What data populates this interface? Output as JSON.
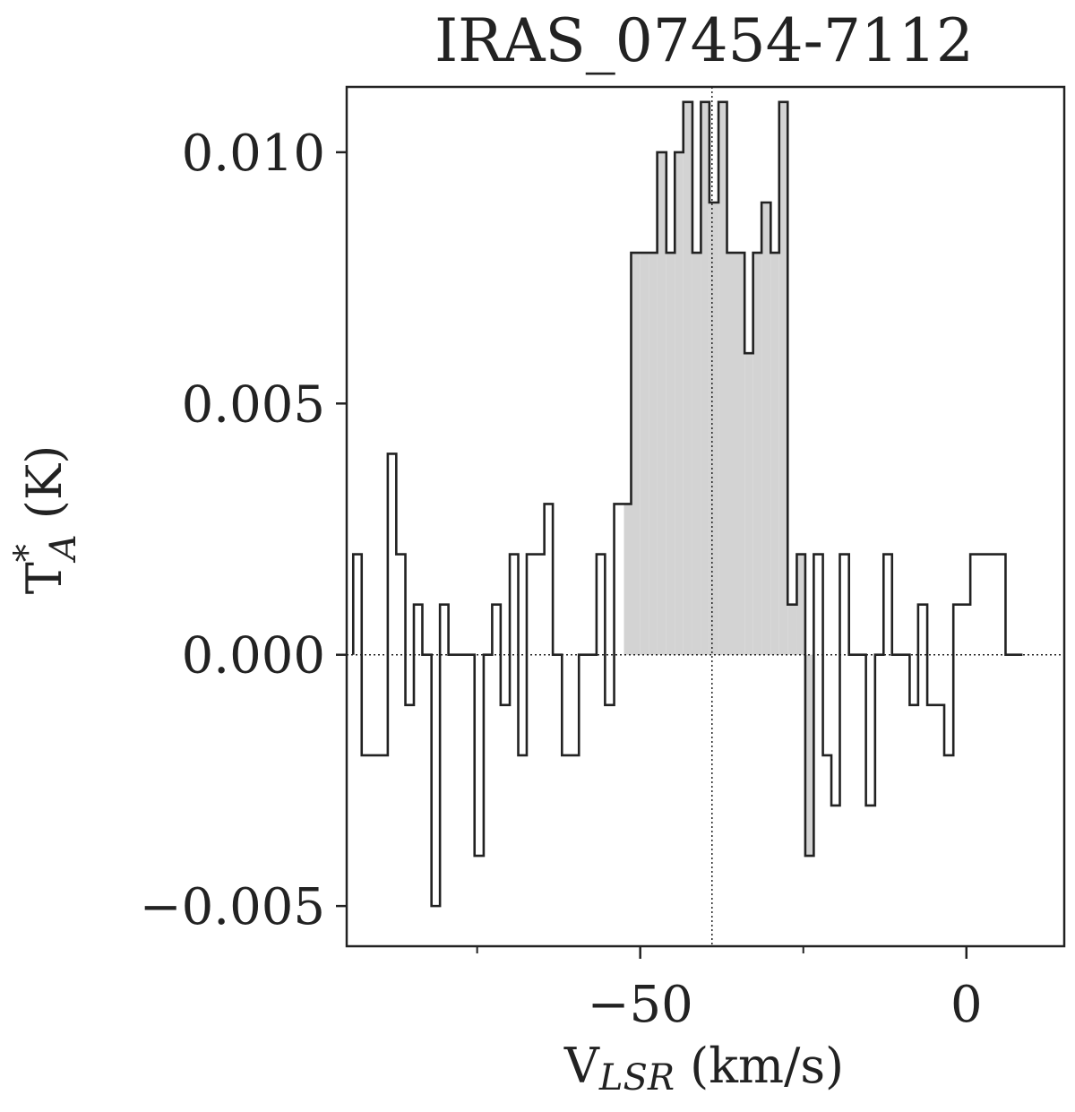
{
  "chart_data": {
    "type": "line",
    "style": "step",
    "title": "IRAS_07454-7112",
    "xlabel": {
      "main": "V",
      "sub": "LSR",
      "unit": " (km/s)"
    },
    "ylabel": {
      "main": "T",
      "sup": "*",
      "sub": "A",
      "unit": " (K)"
    },
    "xlim": [
      -95,
      15
    ],
    "ylim": [
      -0.0058,
      0.0113
    ],
    "xticks": [
      {
        "value": -50,
        "label": "−50"
      },
      {
        "value": 0,
        "label": "0"
      }
    ],
    "yticks": [
      {
        "value": -0.005,
        "label": "−0.005"
      },
      {
        "value": 0.0,
        "label": "0.000"
      },
      {
        "value": 0.005,
        "label": "0.005"
      },
      {
        "value": 0.01,
        "label": "0.010"
      }
    ],
    "x_minor_ticks": [
      -75,
      -25
    ],
    "reference_lines": {
      "y": 0,
      "x": -39,
      "style": "dotted"
    },
    "shaded_range": [
      -52.5,
      -23.5
    ],
    "shade_color": "#d3d3d3",
    "line_color": "#222222",
    "series": [
      {
        "x": [
          -94.0,
          -92.7,
          -91.4,
          -90.0,
          -88.7,
          -87.4,
          -86.0,
          -84.7,
          -83.4,
          -82.0,
          -80.7,
          -79.4,
          -78.0,
          -76.7,
          -75.4,
          -74.0,
          -72.7,
          -71.4,
          -70.0,
          -68.7,
          -67.4,
          -66.0,
          -64.7,
          -63.4,
          -62.0,
          -60.7,
          -59.4,
          -58.0,
          -56.7,
          -55.4,
          -54.0,
          -52.7,
          -51.4,
          -50.0,
          -48.7,
          -47.4,
          -46.0,
          -44.7,
          -43.4,
          -42.0,
          -40.7,
          -39.4,
          -38.0,
          -36.7,
          -35.4,
          -34.0,
          -32.7,
          -31.4,
          -30.0,
          -28.7,
          -27.4,
          -26.0,
          -24.7,
          -23.4,
          -22.0,
          -20.7,
          -19.4,
          -18.0,
          -16.7,
          -15.4,
          -14.0,
          -12.7,
          -11.4,
          -10.0,
          -8.7,
          -7.4,
          -6.0,
          -4.7,
          -3.4,
          -2.0,
          -0.7,
          0.6,
          2.0,
          3.3,
          4.6,
          6.0,
          7.3
        ],
        "values": [
          0.002,
          -0.002,
          -0.002,
          -0.002,
          0.004,
          0.002,
          -0.001,
          0.001,
          0.0,
          -0.005,
          0.001,
          0.0,
          0.0,
          0.0,
          -0.004,
          0.0,
          0.001,
          -0.001,
          0.002,
          -0.002,
          0.002,
          0.002,
          0.003,
          0.0,
          -0.002,
          -0.002,
          0.0,
          0.0,
          0.002,
          -0.001,
          0.003,
          0.003,
          0.008,
          0.008,
          0.008,
          0.01,
          0.008,
          0.01,
          0.011,
          0.008,
          0.011,
          0.009,
          0.011,
          0.008,
          0.008,
          0.006,
          0.008,
          0.009,
          0.008,
          0.011,
          0.001,
          0.002,
          -0.004,
          0.002,
          -0.002,
          -0.003,
          0.002,
          0.0,
          0.0,
          -0.003,
          0.0,
          0.002,
          0.0,
          0.0,
          -0.001,
          0.001,
          -0.001,
          -0.001,
          -0.002,
          0.001,
          0.001,
          0.002,
          0.002,
          0.002,
          0.002,
          0.0,
          0.0
        ]
      }
    ]
  }
}
